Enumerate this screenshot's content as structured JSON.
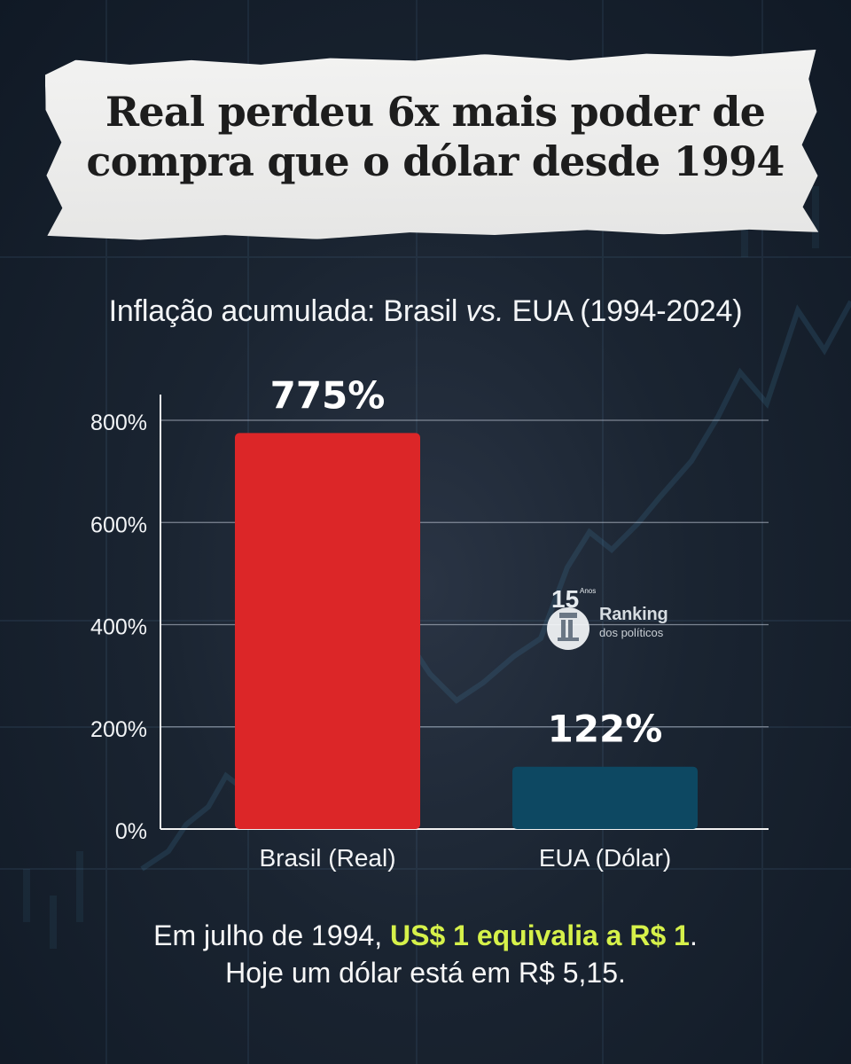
{
  "headline": {
    "line1": "Real perdeu 6x mais poder de",
    "line2": "compra que o dólar desde 1994"
  },
  "subtitle": {
    "prefix": "Inflação acumulada: Brasil ",
    "italic": "vs.",
    "suffix": " EUA (1994-2024)"
  },
  "chart_data": {
    "type": "bar",
    "title": "Inflação acumulada: Brasil vs. EUA (1994-2024)",
    "categories": [
      "Brasil (Real)",
      "EUA (Dólar)"
    ],
    "values": [
      775,
      122
    ],
    "value_labels": [
      "775%",
      "122%"
    ],
    "colors": [
      "#dc2628",
      "#0d4862"
    ],
    "ylim": [
      0,
      800
    ],
    "ticks": [
      {
        "value": 0,
        "label": "0%"
      },
      {
        "value": 200,
        "label": "200%"
      },
      {
        "value": 400,
        "label": "400%"
      },
      {
        "value": 600,
        "label": "600%"
      },
      {
        "value": 800,
        "label": "800%"
      }
    ],
    "grid": true,
    "legend": "none"
  },
  "watermark": {
    "badge": "15",
    "badge_sub": "Anos",
    "name": "Ranking",
    "sub": "dos políticos"
  },
  "footer": {
    "line1_prefix": "Em julho de 1994, ",
    "line1_highlight": "US$ 1 equivalia a R$ 1",
    "line1_suffix": ".",
    "line2": "Hoje um dólar está em R$  5,15."
  }
}
